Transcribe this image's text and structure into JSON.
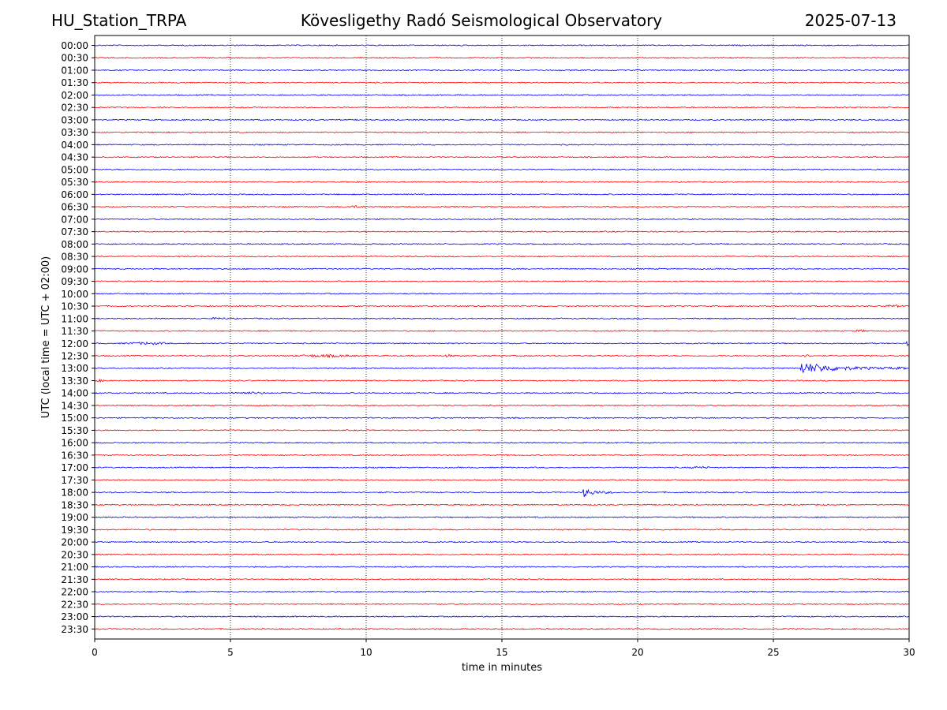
{
  "header": {
    "station": "HU_Station_TRPA",
    "observatory": "Kövesligethy Radó Seismological Observatory",
    "date": "2025-07-13"
  },
  "chart_data": {
    "type": "line",
    "title": "Kövesligethy Radó Seismological Observatory",
    "xlabel": "time in minutes",
    "ylabel": "UTC (local time = UTC + 02:00)",
    "xlim": [
      0,
      30
    ],
    "xticks": [
      0,
      5,
      10,
      15,
      20,
      25,
      30
    ],
    "grid": "vertical dotted at 5-minute ticks",
    "colors": {
      "even_row": "#0000ff",
      "odd_row": "#ff0000"
    },
    "row_labels": [
      "00:00",
      "00:30",
      "01:00",
      "01:30",
      "02:00",
      "02:30",
      "03:00",
      "03:30",
      "04:00",
      "04:30",
      "05:00",
      "05:30",
      "06:00",
      "06:30",
      "07:00",
      "07:30",
      "08:00",
      "08:30",
      "09:00",
      "09:30",
      "10:00",
      "10:30",
      "11:00",
      "11:30",
      "12:00",
      "12:30",
      "13:00",
      "13:30",
      "14:00",
      "14:30",
      "15:00",
      "15:30",
      "16:00",
      "16:30",
      "17:00",
      "17:30",
      "18:00",
      "18:30",
      "19:00",
      "19:30",
      "20:00",
      "20:30",
      "21:00",
      "21:30",
      "22:00",
      "22:30",
      "23:00",
      "23:30"
    ],
    "events": [
      {
        "row": "01:30",
        "start_min": 4.6,
        "duration_min": 0.3,
        "amplitude": 0.5
      },
      {
        "row": "06:30",
        "start_min": 9.0,
        "duration_min": 1.2,
        "amplitude": 0.8
      },
      {
        "row": "10:30",
        "start_min": 29.0,
        "duration_min": 0.8,
        "amplitude": 1.0
      },
      {
        "row": "11:00",
        "start_min": 4.3,
        "duration_min": 0.6,
        "amplitude": 0.9
      },
      {
        "row": "11:30",
        "start_min": 27.9,
        "duration_min": 0.6,
        "amplitude": 0.9
      },
      {
        "row": "12:00",
        "start_min": 0.9,
        "duration_min": 2.0,
        "amplitude": 1.0
      },
      {
        "row": "12:00",
        "start_min": 29.8,
        "duration_min": 0.3,
        "amplitude": 3.0
      },
      {
        "row": "12:30",
        "start_min": 7.2,
        "duration_min": 2.6,
        "amplitude": 1.1
      },
      {
        "row": "12:30",
        "start_min": 12.8,
        "duration_min": 0.5,
        "amplitude": 1.0
      },
      {
        "row": "12:30",
        "start_min": 26.0,
        "duration_min": 0.5,
        "amplitude": 1.1
      },
      {
        "row": "13:00",
        "start_min": 26.0,
        "duration_min": 4.0,
        "amplitude": 7.0
      },
      {
        "row": "13:30",
        "start_min": 0.0,
        "duration_min": 0.4,
        "amplitude": 1.0
      },
      {
        "row": "14:00",
        "start_min": 4.8,
        "duration_min": 1.8,
        "amplitude": 0.8
      },
      {
        "row": "17:00",
        "start_min": 21.8,
        "duration_min": 0.9,
        "amplitude": 0.9
      },
      {
        "row": "18:00",
        "start_min": 18.0,
        "duration_min": 1.1,
        "amplitude": 6.0
      }
    ]
  }
}
